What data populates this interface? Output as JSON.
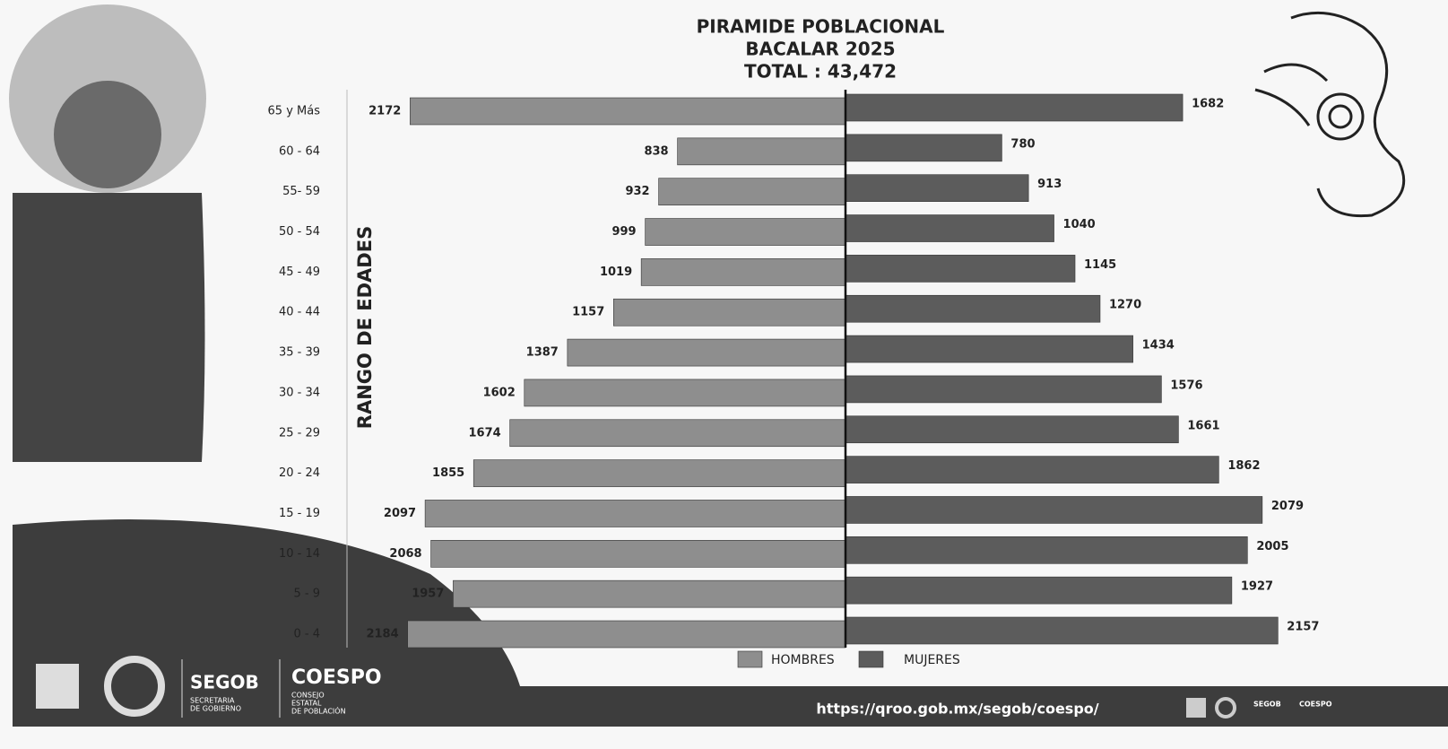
{
  "chart_data": {
    "type": "pyramid",
    "title": [
      "PIRAMIDE POBLACIONAL",
      "BACALAR 2025",
      "TOTAL : 43,472"
    ],
    "y_label": "RANGO DE EDADES",
    "categories": [
      "65 y Más",
      "60 - 64",
      "55- 59",
      "50 - 54",
      "45 - 49",
      "40 - 44",
      "35 - 39",
      "30 - 34",
      "25 - 29",
      "20 - 24",
      "15 - 19",
      "10 - 14",
      "5 - 9",
      "0 - 4"
    ],
    "series": [
      {
        "name": "HOMBRES",
        "color": "#8e8e8e",
        "values": [
          2172,
          838,
          932,
          999,
          1019,
          1157,
          1387,
          1602,
          1674,
          1855,
          2097,
          2068,
          1957,
          2184
        ]
      },
      {
        "name": "MUJERES",
        "color": "#5c5c5c",
        "values": [
          1682,
          780,
          913,
          1040,
          1145,
          1270,
          1434,
          1576,
          1661,
          1862,
          2079,
          2005,
          1927,
          2157
        ]
      }
    ],
    "xlim": [
      0,
      2500
    ]
  },
  "footer": {
    "segob": "SEGOB",
    "segob_sub": [
      "SECRETARIA",
      "DE GOBIERNO"
    ],
    "coespo": "COESPO",
    "coespo_sub": [
      "CONSEJO",
      "ESTATAL",
      "DE POBLACIÓN"
    ],
    "url": "https://qroo.gob.mx/segob/coespo/",
    "mini_segob": "SEGOB",
    "mini_coespo": "COESPO"
  }
}
